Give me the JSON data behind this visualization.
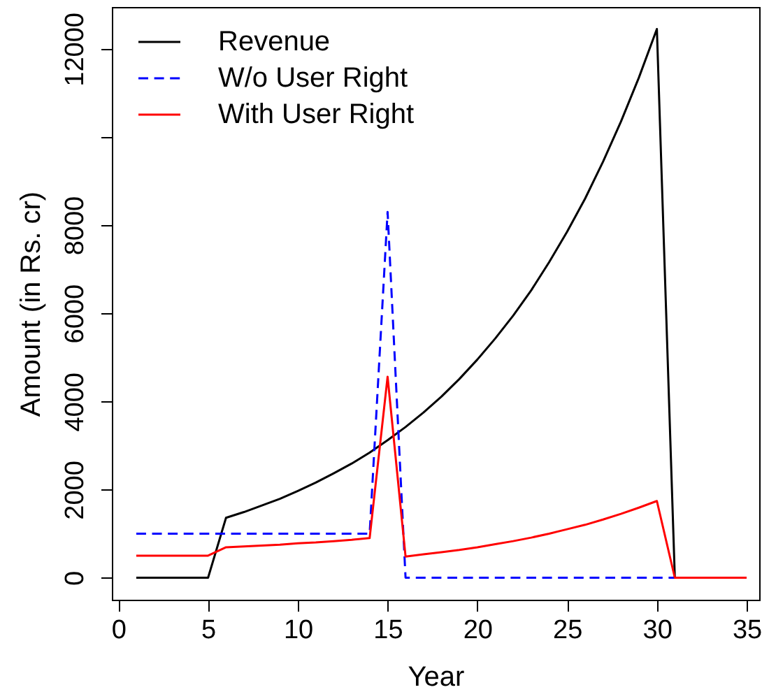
{
  "chart_data": {
    "type": "line",
    "xlabel": "Year",
    "ylabel": "Amount (in Rs. cr)",
    "x": [
      1,
      2,
      3,
      4,
      5,
      6,
      7,
      8,
      9,
      10,
      11,
      12,
      13,
      14,
      15,
      16,
      17,
      18,
      19,
      20,
      21,
      22,
      23,
      24,
      25,
      26,
      27,
      28,
      29,
      30,
      31,
      32,
      33,
      34,
      35
    ],
    "xlim": [
      -0.36,
      35.7
    ],
    "xticks": [
      0,
      5,
      10,
      15,
      20,
      25,
      30,
      35
    ],
    "ylim": [
      -500,
      12950
    ],
    "yticks": [
      0,
      2000,
      4000,
      6000,
      8000,
      {
        "value": 10000,
        "label": null
      },
      12000
    ],
    "legend": "top left",
    "series": [
      {
        "name": "Revenue",
        "color": "#000000",
        "line_style": "solid",
        "values": [
          0,
          0,
          0,
          0,
          0,
          1360,
          1490,
          1640,
          1790,
          1970,
          2160,
          2370,
          2590,
          2840,
          3120,
          3420,
          3750,
          4110,
          4510,
          4950,
          5430,
          5950,
          6520,
          7160,
          7850,
          8600,
          9440,
          10350,
          11350,
          12450,
          0,
          null,
          null,
          null,
          null
        ]
      },
      {
        "name": "W/o User Right",
        "color": "#0000ff",
        "line_style": "dashed",
        "values": [
          1000,
          1000,
          1000,
          1000,
          1000,
          1000,
          1000,
          1000,
          1000,
          1000,
          1000,
          1000,
          1000,
          1000,
          8300,
          0,
          0,
          0,
          0,
          0,
          0,
          0,
          0,
          0,
          0,
          0,
          0,
          0,
          0,
          0,
          0,
          null,
          null,
          null,
          null
        ]
      },
      {
        "name": "With User Right",
        "color": "#ff0000",
        "line_style": "solid",
        "values": [
          500,
          500,
          500,
          500,
          500,
          690,
          710,
          730,
          750,
          780,
          800,
          830,
          860,
          900,
          4560,
          480,
          530,
          580,
          630,
          690,
          760,
          830,
          910,
          1000,
          1100,
          1200,
          1320,
          1450,
          1590,
          1740,
          0,
          0,
          0,
          0,
          0
        ]
      }
    ]
  }
}
